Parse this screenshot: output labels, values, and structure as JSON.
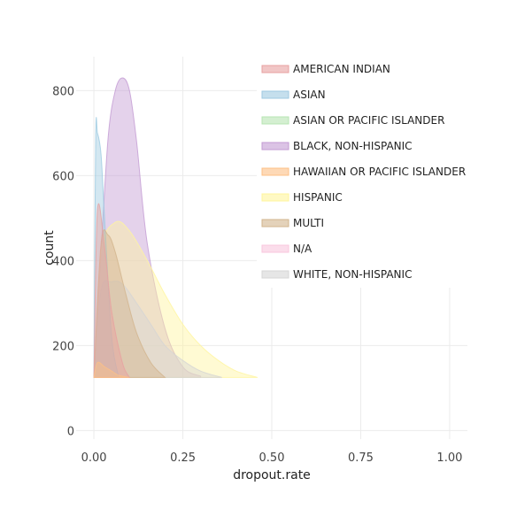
{
  "chart_data": {
    "type": "area",
    "title": "",
    "xlabel": "dropout.rate",
    "ylabel": "count",
    "xlim": [
      -0.05,
      1.05
    ],
    "ylim": [
      -20,
      880
    ],
    "x_ticks": [
      0,
      0.25,
      0.5,
      0.75,
      1.0
    ],
    "x_tick_labels": [
      "0.00",
      "0.25",
      "0.50",
      "0.75",
      "1.00"
    ],
    "y_ticks": [
      0,
      200,
      400,
      600,
      800
    ],
    "y_tick_labels": [
      "0",
      "200",
      "400",
      "600",
      "800"
    ],
    "grid": true,
    "legend_position": "top-right",
    "baseline": 125,
    "series": [
      {
        "name": "BLACK, NON-HISPANIC",
        "color": "#c39bd3",
        "x": [
          0.0,
          0.02,
          0.04,
          0.06,
          0.08,
          0.1,
          0.12,
          0.15,
          0.2,
          0.25,
          0.3
        ],
        "y": [
          125,
          420,
          690,
          800,
          830,
          800,
          680,
          440,
          240,
          150,
          128
        ]
      },
      {
        "name": "HISPANIC",
        "color": "#fff59d",
        "x": [
          0.0,
          0.02,
          0.06,
          0.1,
          0.15,
          0.2,
          0.25,
          0.3,
          0.35,
          0.4,
          0.46
        ],
        "y": [
          125,
          420,
          490,
          470,
          400,
          320,
          250,
          200,
          165,
          140,
          125
        ]
      },
      {
        "name": "WHITE, NON-HISPANIC",
        "color": "#d5d5d5",
        "x": [
          0.0,
          0.02,
          0.05,
          0.08,
          0.12,
          0.16,
          0.2,
          0.25,
          0.3,
          0.36
        ],
        "y": [
          125,
          330,
          350,
          345,
          300,
          250,
          200,
          165,
          140,
          125
        ]
      },
      {
        "name": "ASIAN",
        "color": "#9ecae1",
        "x": [
          0.0,
          0.005,
          0.01,
          0.02,
          0.03,
          0.05,
          0.07
        ],
        "y": [
          125,
          690,
          700,
          650,
          500,
          220,
          125
        ]
      },
      {
        "name": "MULTI",
        "color": "#d2b48c",
        "x": [
          0.0,
          0.02,
          0.04,
          0.06,
          0.09,
          0.12,
          0.16,
          0.2
        ],
        "y": [
          125,
          440,
          460,
          420,
          320,
          230,
          160,
          125
        ]
      },
      {
        "name": "AMERICAN INDIAN",
        "color": "#e8a0a0",
        "x": [
          0.0,
          0.01,
          0.03,
          0.05,
          0.08,
          0.1
        ],
        "y": [
          125,
          520,
          430,
          280,
          160,
          125
        ]
      },
      {
        "name": "HAWAIIAN OR PACIFIC ISLANDER",
        "color": "#fdc086",
        "x": [
          0.0,
          0.01,
          0.03,
          0.05,
          0.07,
          0.1
        ],
        "y": [
          125,
          160,
          150,
          140,
          130,
          125
        ]
      },
      {
        "name": "ASIAN OR PACIFIC ISLANDER",
        "color": "#b7e4b3",
        "x": [],
        "y": []
      },
      {
        "name": "N/A",
        "color": "#f9c6de",
        "x": [],
        "y": []
      }
    ],
    "legend": [
      {
        "name": "AMERICAN INDIAN",
        "color": "#e8a0a0"
      },
      {
        "name": "ASIAN",
        "color": "#9ecae1"
      },
      {
        "name": "ASIAN OR PACIFIC ISLANDER",
        "color": "#b7e4b3"
      },
      {
        "name": "BLACK, NON-HISPANIC",
        "color": "#c39bd3"
      },
      {
        "name": "HAWAIIAN OR PACIFIC ISLANDER",
        "color": "#fdc086"
      },
      {
        "name": "HISPANIC",
        "color": "#fff59d"
      },
      {
        "name": "MULTI",
        "color": "#d2b48c"
      },
      {
        "name": "N/A",
        "color": "#f9c6de"
      },
      {
        "name": "WHITE, NON-HISPANIC",
        "color": "#d5d5d5"
      }
    ]
  }
}
